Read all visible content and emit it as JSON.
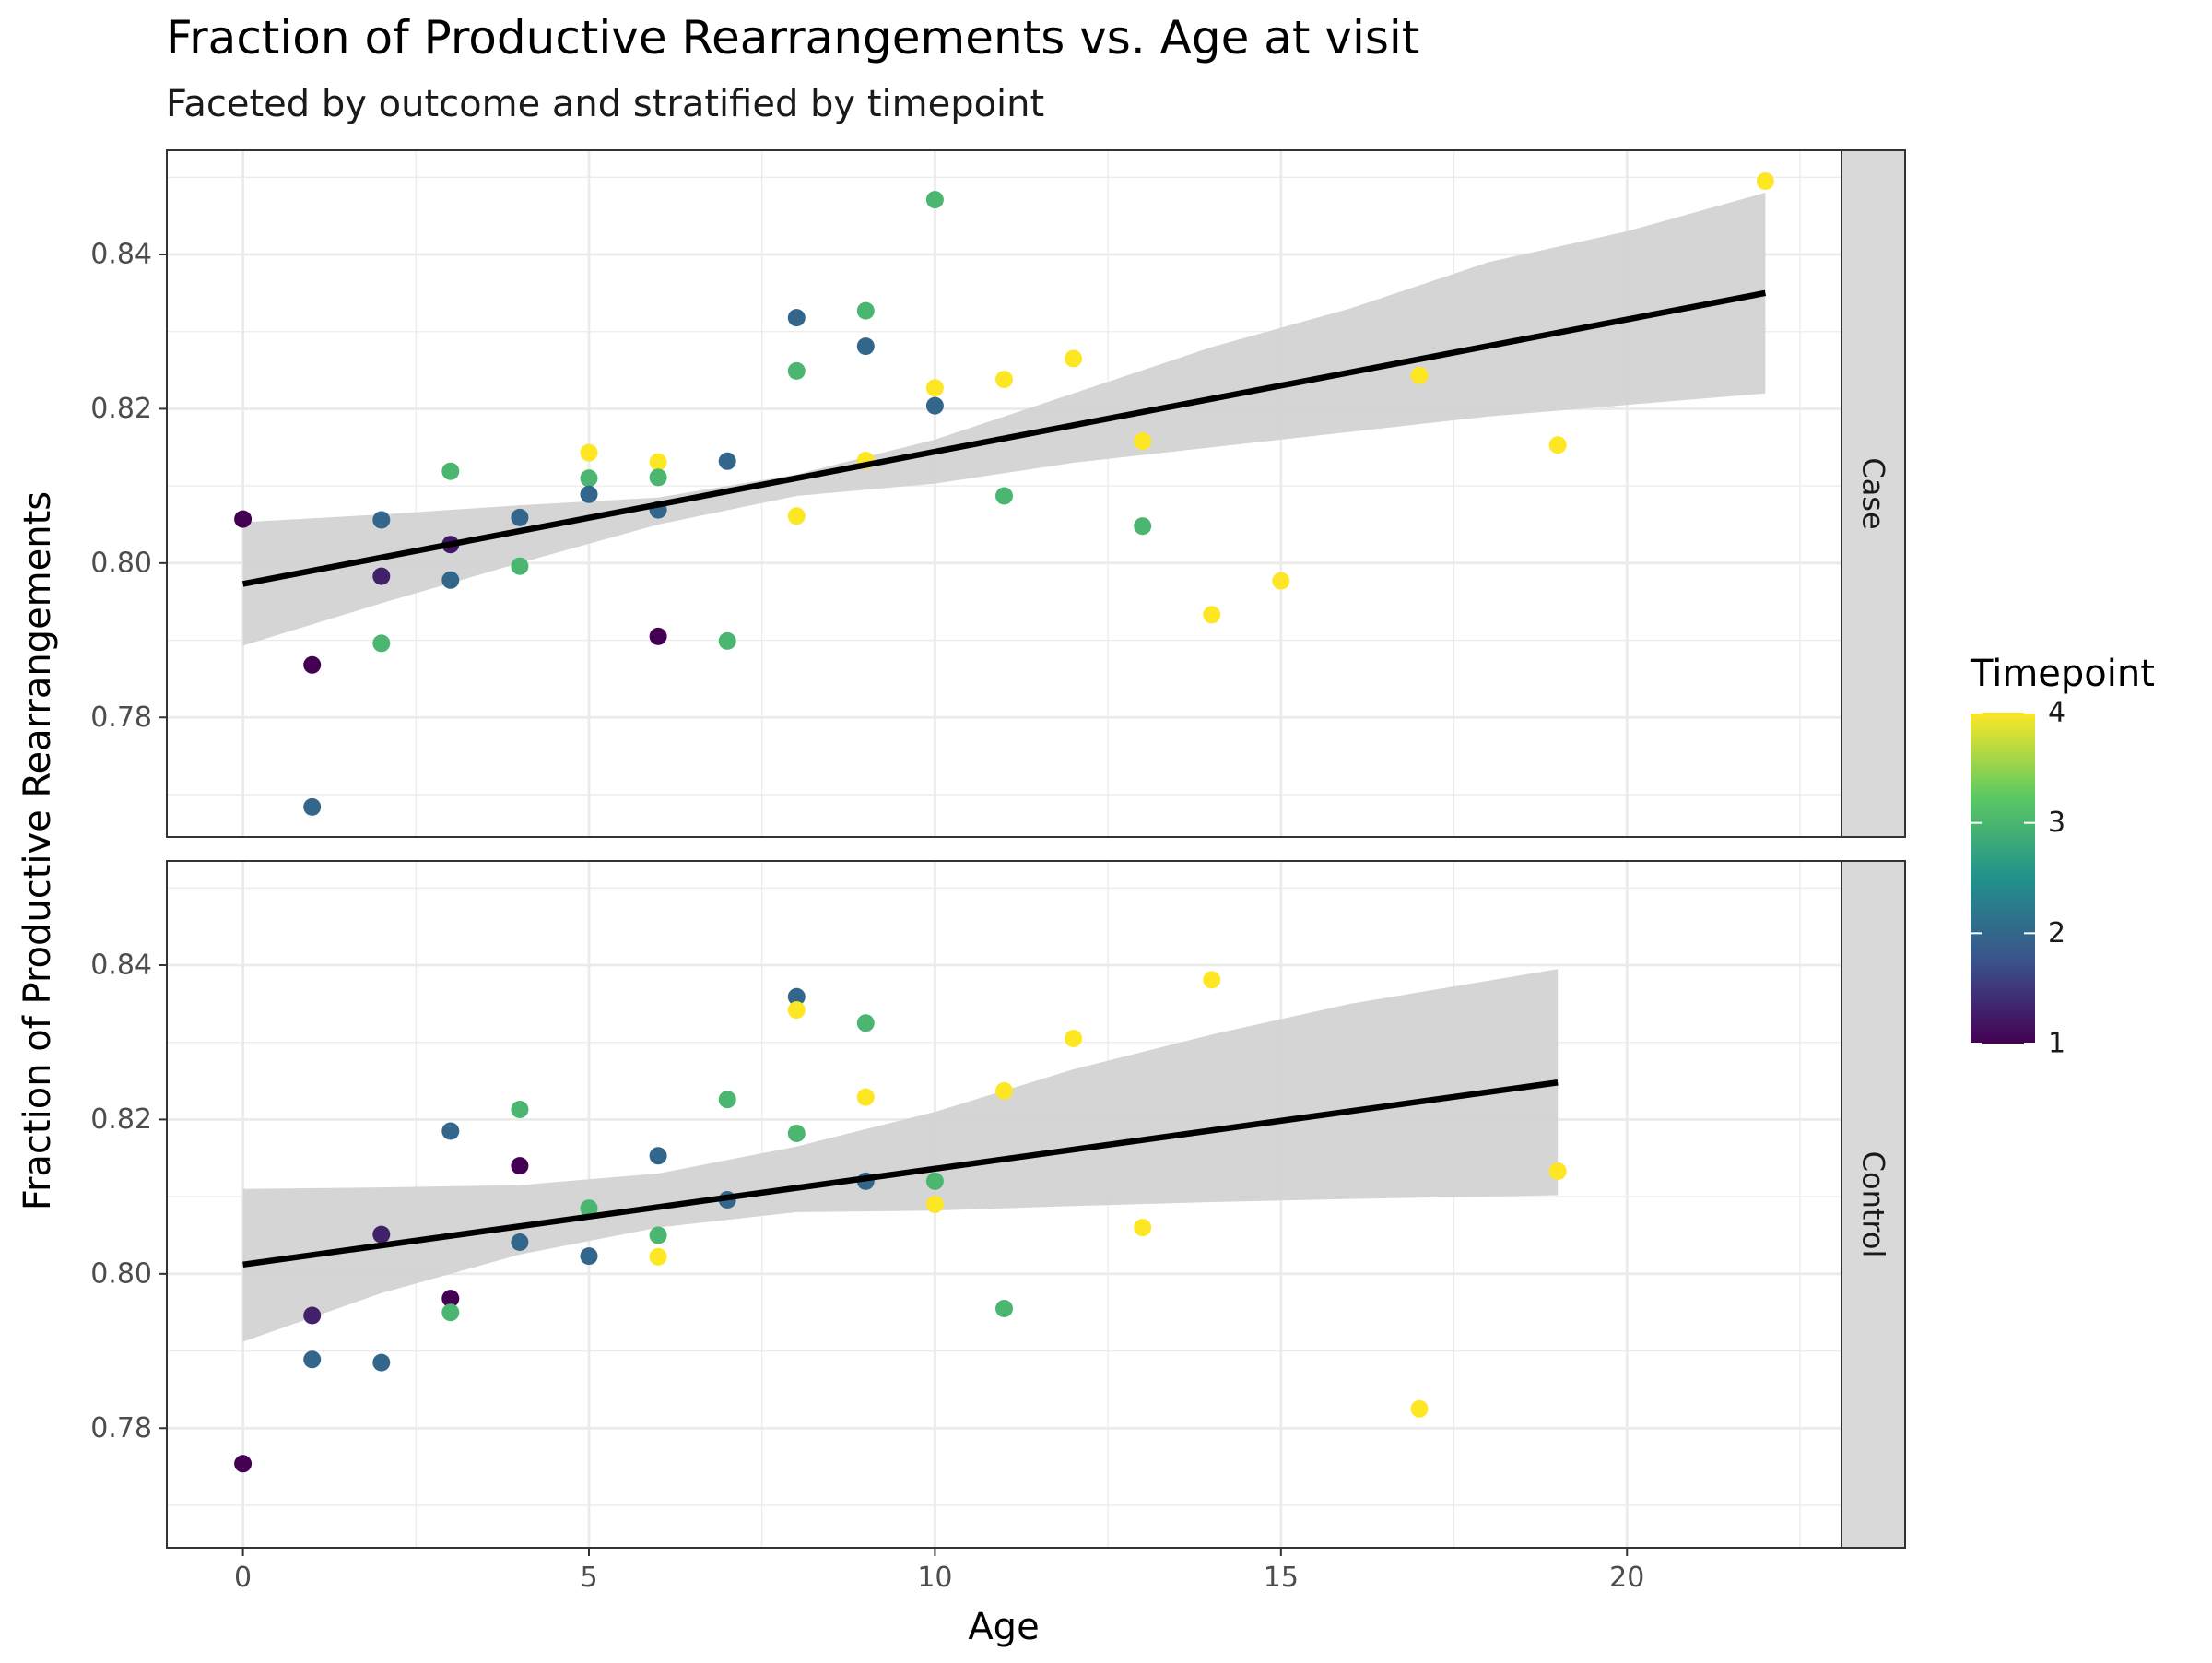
{
  "chart_data": {
    "type": "scatter",
    "title": "Fraction of Productive Rearrangements vs. Age at visit",
    "subtitle": "Faceted by outcome and stratified by timepoint",
    "xlabel": "Age",
    "ylabel": "Fraction of Productive Rearrangements",
    "xlim": [
      -1.1,
      23.1
    ],
    "ylim": [
      0.7645,
      0.8535
    ],
    "x_ticks": [
      0,
      5,
      10,
      15,
      20
    ],
    "y_ticks": [
      0.78,
      0.8,
      0.82,
      0.84
    ],
    "x_tick_labels": [
      "0",
      "5",
      "10",
      "15",
      "20"
    ],
    "y_tick_labels": [
      "0.78",
      "0.80",
      "0.82",
      "0.84"
    ],
    "grid": true,
    "legend": {
      "title": "Timepoint",
      "position": "right",
      "type": "colorbar",
      "range": [
        1,
        4
      ],
      "breaks": [
        "1",
        "2",
        "3",
        "4"
      ],
      "colors": [
        "#440154",
        "#3b528b",
        "#21918c",
        "#5ec962",
        "#fde725"
      ]
    },
    "fit_line_color": "#000000",
    "ribbon_color": "#d3d3d3",
    "facets": [
      {
        "label": "Case",
        "points": [
          {
            "x": 0,
            "y": 0.8057,
            "t": 1
          },
          {
            "x": 1,
            "y": 0.7868,
            "t": 1
          },
          {
            "x": 1,
            "y": 0.7684,
            "t": 2
          },
          {
            "x": 2,
            "y": 0.8056,
            "t": 2
          },
          {
            "x": 2,
            "y": 0.7983,
            "t": 1.3
          },
          {
            "x": 2,
            "y": 0.7896,
            "t": 3
          },
          {
            "x": 3,
            "y": 0.8119,
            "t": 3
          },
          {
            "x": 3,
            "y": 0.8024,
            "t": 1.2
          },
          {
            "x": 3,
            "y": 0.7978,
            "t": 2
          },
          {
            "x": 4,
            "y": 0.8059,
            "t": 2
          },
          {
            "x": 4,
            "y": 0.7996,
            "t": 3
          },
          {
            "x": 5,
            "y": 0.8143,
            "t": 4
          },
          {
            "x": 5,
            "y": 0.811,
            "t": 3
          },
          {
            "x": 5,
            "y": 0.8089,
            "t": 2
          },
          {
            "x": 6,
            "y": 0.8131,
            "t": 4
          },
          {
            "x": 6,
            "y": 0.8111,
            "t": 3
          },
          {
            "x": 6,
            "y": 0.8069,
            "t": 2
          },
          {
            "x": 6,
            "y": 0.7905,
            "t": 1
          },
          {
            "x": 7,
            "y": 0.8132,
            "t": 2
          },
          {
            "x": 7,
            "y": 0.7899,
            "t": 3
          },
          {
            "x": 8,
            "y": 0.8318,
            "t": 2
          },
          {
            "x": 8,
            "y": 0.8249,
            "t": 3
          },
          {
            "x": 8,
            "y": 0.8061,
            "t": 4
          },
          {
            "x": 9,
            "y": 0.8327,
            "t": 3
          },
          {
            "x": 9,
            "y": 0.8281,
            "t": 2
          },
          {
            "x": 9,
            "y": 0.8133,
            "t": 4
          },
          {
            "x": 10,
            "y": 0.8471,
            "t": 3
          },
          {
            "x": 10,
            "y": 0.8227,
            "t": 4
          },
          {
            "x": 10,
            "y": 0.8204,
            "t": 2
          },
          {
            "x": 11,
            "y": 0.8238,
            "t": 4
          },
          {
            "x": 11,
            "y": 0.8087,
            "t": 3
          },
          {
            "x": 12,
            "y": 0.8265,
            "t": 4
          },
          {
            "x": 13,
            "y": 0.8158,
            "t": 4
          },
          {
            "x": 13,
            "y": 0.8048,
            "t": 3
          },
          {
            "x": 14,
            "y": 0.7933,
            "t": 4
          },
          {
            "x": 15,
            "y": 0.7977,
            "t": 4
          },
          {
            "x": 17,
            "y": 0.8243,
            "t": 4
          },
          {
            "x": 19,
            "y": 0.8153,
            "t": 4
          },
          {
            "x": 22,
            "y": 0.8495,
            "t": 4
          }
        ],
        "fit": {
          "x": [
            0,
            22
          ],
          "y": [
            0.7973,
            0.835
          ]
        },
        "ribbon": {
          "x": [
            0,
            2,
            4,
            6,
            8,
            10,
            12,
            14,
            16,
            18,
            20,
            22
          ],
          "lower": [
            0.7893,
            0.7948,
            0.8,
            0.805,
            0.8087,
            0.8103,
            0.813,
            0.815,
            0.817,
            0.819,
            0.8205,
            0.822
          ],
          "upper": [
            0.8053,
            0.8063,
            0.8075,
            0.8085,
            0.8115,
            0.816,
            0.822,
            0.828,
            0.833,
            0.839,
            0.843,
            0.848
          ]
        }
      },
      {
        "label": "Control",
        "points": [
          {
            "x": 0,
            "y": 0.7754,
            "t": 1
          },
          {
            "x": 1,
            "y": 0.7946,
            "t": 1.3
          },
          {
            "x": 1,
            "y": 0.7889,
            "t": 2
          },
          {
            "x": 2,
            "y": 0.8051,
            "t": 1.3
          },
          {
            "x": 2,
            "y": 0.7885,
            "t": 2
          },
          {
            "x": 3,
            "y": 0.8185,
            "t": 2
          },
          {
            "x": 3,
            "y": 0.7968,
            "t": 1
          },
          {
            "x": 3,
            "y": 0.795,
            "t": 3
          },
          {
            "x": 4,
            "y": 0.8213,
            "t": 3
          },
          {
            "x": 4,
            "y": 0.814,
            "t": 1
          },
          {
            "x": 4,
            "y": 0.8041,
            "t": 2
          },
          {
            "x": 5,
            "y": 0.8085,
            "t": 3
          },
          {
            "x": 5,
            "y": 0.8023,
            "t": 2
          },
          {
            "x": 6,
            "y": 0.8153,
            "t": 2
          },
          {
            "x": 6,
            "y": 0.805,
            "t": 3
          },
          {
            "x": 6,
            "y": 0.8022,
            "t": 4
          },
          {
            "x": 7,
            "y": 0.8226,
            "t": 3
          },
          {
            "x": 7,
            "y": 0.8096,
            "t": 2
          },
          {
            "x": 8,
            "y": 0.8359,
            "t": 2
          },
          {
            "x": 8,
            "y": 0.8342,
            "t": 4
          },
          {
            "x": 8,
            "y": 0.8182,
            "t": 3
          },
          {
            "x": 9,
            "y": 0.8325,
            "t": 3
          },
          {
            "x": 9,
            "y": 0.8229,
            "t": 4
          },
          {
            "x": 9,
            "y": 0.812,
            "t": 2
          },
          {
            "x": 10,
            "y": 0.812,
            "t": 3
          },
          {
            "x": 10,
            "y": 0.809,
            "t": 4
          },
          {
            "x": 11,
            "y": 0.8237,
            "t": 4
          },
          {
            "x": 11,
            "y": 0.7955,
            "t": 3
          },
          {
            "x": 12,
            "y": 0.8305,
            "t": 4
          },
          {
            "x": 13,
            "y": 0.806,
            "t": 4
          },
          {
            "x": 14,
            "y": 0.8381,
            "t": 4
          },
          {
            "x": 17,
            "y": 0.7825,
            "t": 4
          },
          {
            "x": 19,
            "y": 0.8133,
            "t": 4
          }
        ],
        "fit": {
          "x": [
            0,
            19
          ],
          "y": [
            0.8012,
            0.8248
          ]
        },
        "ribbon": {
          "x": [
            0,
            2,
            4,
            6,
            8,
            10,
            12,
            14,
            16,
            19
          ],
          "lower": [
            0.7912,
            0.7975,
            0.8025,
            0.806,
            0.808,
            0.8082,
            0.8088,
            0.8093,
            0.8097,
            0.8102
          ],
          "upper": [
            0.811,
            0.8112,
            0.8115,
            0.813,
            0.8165,
            0.821,
            0.8265,
            0.831,
            0.835,
            0.8395
          ]
        }
      }
    ]
  }
}
